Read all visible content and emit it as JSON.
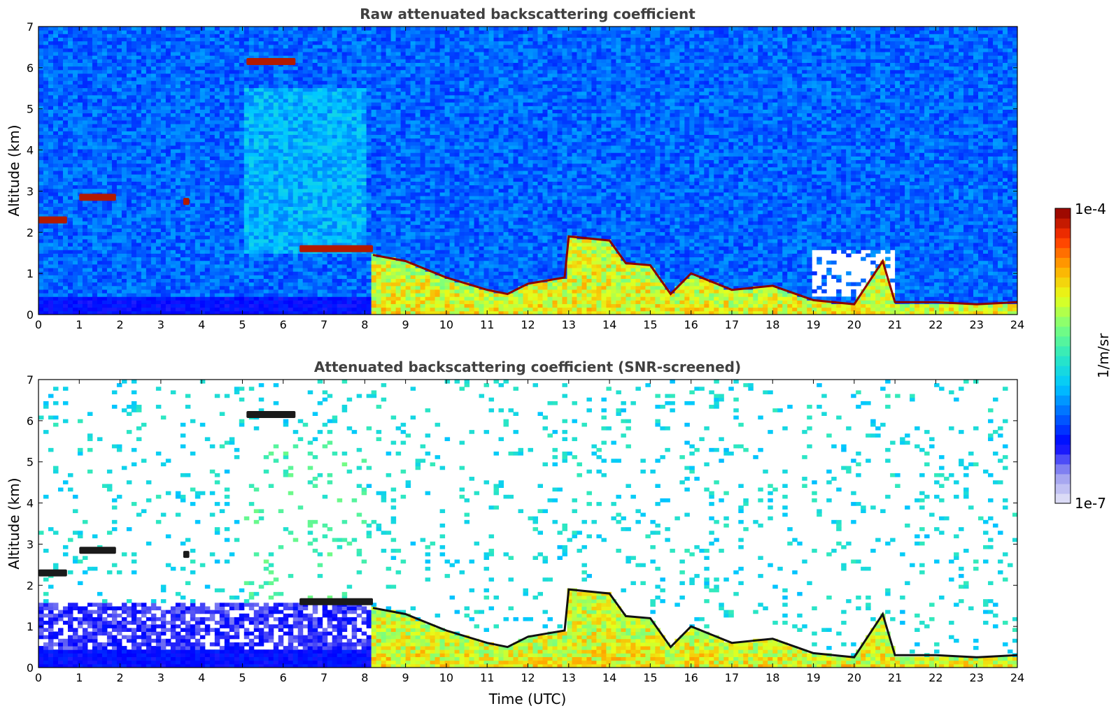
{
  "chart_data": [
    {
      "type": "heatmap",
      "title": "Raw attenuated backscattering coefficient",
      "xlabel": "",
      "ylabel": "Altitude (km)",
      "xlim": [
        0,
        24
      ],
      "ylim": [
        0,
        7
      ],
      "xticks": [
        0,
        1,
        2,
        3,
        4,
        5,
        6,
        7,
        8,
        9,
        10,
        11,
        12,
        13,
        14,
        15,
        16,
        17,
        18,
        19,
        20,
        21,
        22,
        23,
        24
      ],
      "yticks": [
        0,
        1,
        2,
        3,
        4,
        5,
        6,
        7
      ],
      "colormap": "jet",
      "screened": false,
      "features": {
        "cloud_layers": [
          {
            "t_start": 0.0,
            "t_end": 0.7,
            "alt_km": 2.3
          },
          {
            "t_start": 1.0,
            "t_end": 1.9,
            "alt_km": 2.85
          },
          {
            "t_start": 3.55,
            "t_end": 3.7,
            "alt_km": 2.75
          },
          {
            "t_start": 5.1,
            "t_end": 6.3,
            "alt_km": 6.15
          },
          {
            "t_start": 6.4,
            "t_end": 8.2,
            "alt_km": 1.6
          }
        ],
        "boundary_layer_top": [
          [
            8.2,
            1.45
          ],
          [
            9.0,
            1.3
          ],
          [
            10.0,
            0.9
          ],
          [
            11.0,
            0.6
          ],
          [
            11.5,
            0.5
          ],
          [
            12.0,
            0.75
          ],
          [
            12.9,
            0.9
          ],
          [
            13.0,
            1.9
          ],
          [
            14.0,
            1.8
          ],
          [
            14.4,
            1.25
          ],
          [
            15.0,
            1.2
          ],
          [
            15.5,
            0.5
          ],
          [
            16.0,
            1.0
          ],
          [
            17.0,
            0.6
          ],
          [
            18.0,
            0.7
          ],
          [
            19.0,
            0.35
          ],
          [
            20.0,
            0.25
          ],
          [
            20.7,
            1.3
          ],
          [
            21.0,
            0.3
          ],
          [
            22.0,
            0.3
          ],
          [
            23.0,
            0.25
          ],
          [
            24.0,
            0.3
          ]
        ],
        "near_surface_blue_layer": {
          "t_start": 0,
          "t_end": 8.2,
          "top_km": 0.4
        }
      }
    },
    {
      "type": "heatmap",
      "title": "Attenuated backscattering coefficient (SNR-screened)",
      "xlabel": "Time (UTC)",
      "ylabel": "Altitude (km)",
      "xlim": [
        0,
        24
      ],
      "ylim": [
        0,
        7
      ],
      "xticks": [
        0,
        1,
        2,
        3,
        4,
        5,
        6,
        7,
        8,
        9,
        10,
        11,
        12,
        13,
        14,
        15,
        16,
        17,
        18,
        19,
        20,
        21,
        22,
        23,
        24
      ],
      "yticks": [
        0,
        1,
        2,
        3,
        4,
        5,
        6,
        7
      ],
      "colormap": "jet",
      "screened": true
    }
  ],
  "colorbar": {
    "label": "1/m/sr",
    "max_label": "1e-4",
    "min_label": "1e-7",
    "scale": "log",
    "range": [
      1e-07,
      0.0001
    ],
    "stops": [
      "#e8e8f8",
      "#9a9aee",
      "#0000ff",
      "#0066ff",
      "#00c8ff",
      "#2ee8c0",
      "#7cff7c",
      "#e6ff1a",
      "#ffaa00",
      "#ff3300",
      "#8b0000"
    ]
  }
}
